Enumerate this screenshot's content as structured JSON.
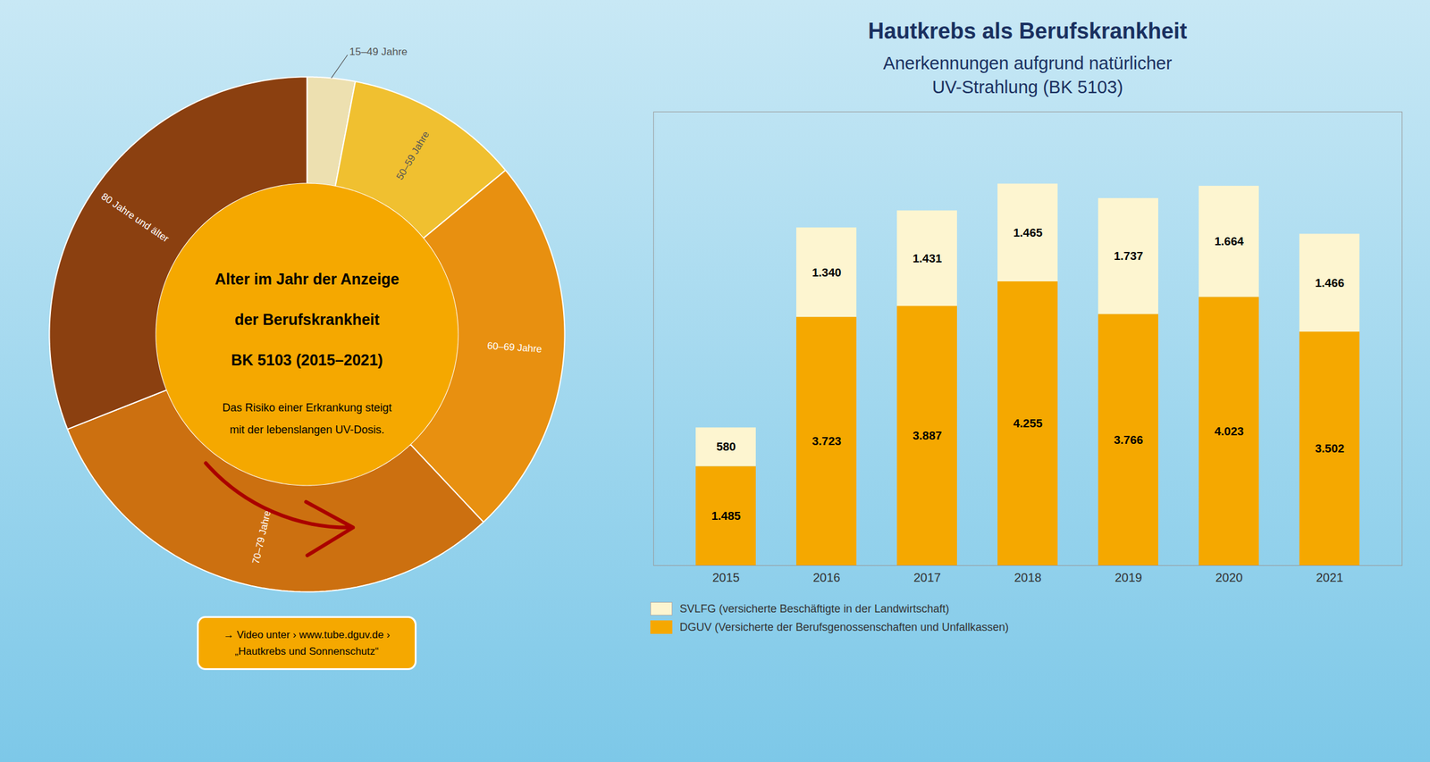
{
  "chart_data": [
    {
      "type": "pie",
      "title": "Alter im Jahr der Anzeige\nder Berufskrankheit\nBK 5103 (2015–2021)",
      "subtitle": "Das Risiko einer Erkrankung steigt\nmit der lebenslangen UV-Dosis.",
      "categories": [
        "15–49 Jahre",
        "50–59 Jahre",
        "60–69 Jahre",
        "70–79 Jahre",
        "80 Jahre und älter"
      ],
      "values": [
        3,
        11,
        24,
        31,
        31
      ],
      "colors": [
        "#ede0b0",
        "#f0c030",
        "#e89010",
        "#cc7010",
        "#8b4010"
      ],
      "annotations": [
        "→ Video unter › www.tube.dguv.de ›",
        "„Hautkrebs und Sonnenschutz“"
      ]
    },
    {
      "type": "bar",
      "stacked": true,
      "title": "Hautkrebs als Berufskrankheit",
      "subtitle": "Anerkennungen aufgrund natürlicher\nUV-Strahlung (BK 5103)",
      "categories": [
        "2015",
        "2016",
        "2017",
        "2018",
        "2019",
        "2020",
        "2021"
      ],
      "series": [
        {
          "name": "DGUV (Versicherte der Berufsgenossenschaften und Unfallkassen)",
          "color": "#f5a800",
          "values": [
            1485,
            3723,
            3887,
            4255,
            3766,
            4023,
            3502
          ],
          "value_labels": [
            "1.485",
            "3.723",
            "3.887",
            "4.255",
            "3.766",
            "4.023",
            "3.502"
          ]
        },
        {
          "name": "SVLFG (versicherte Beschäftigte in der Landwirtschaft)",
          "color": "#fdf5d0",
          "values": [
            580,
            1340,
            1431,
            1465,
            1737,
            1664,
            1466
          ],
          "value_labels": [
            "580",
            "1.340",
            "1.431",
            "1.465",
            "1.737",
            "1.664",
            "1.466"
          ]
        }
      ],
      "ylim": [
        0,
        6800
      ],
      "data_labels": true,
      "tick_labels": "x",
      "legend": "bottom",
      "grid": false
    }
  ]
}
